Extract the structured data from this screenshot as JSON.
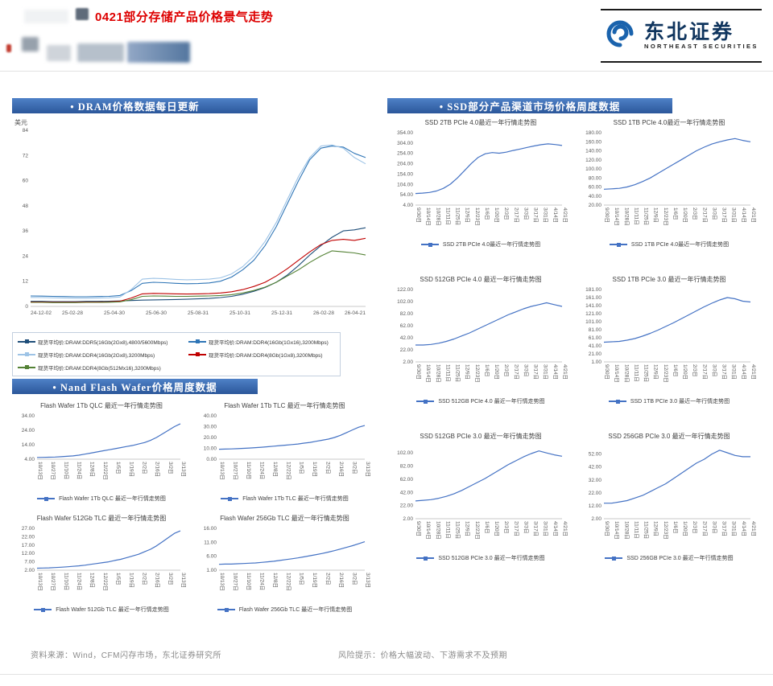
{
  "header": {
    "title": "0421部分存储产品价格景气走势",
    "logo_cn": "东北证券",
    "logo_en": "NORTHEAST SECURITIES"
  },
  "sections": {
    "dram_banner": "•  DRAM价格数据每日更新",
    "nand_banner": "•  Nand Flash Wafer价格周度数据",
    "ssd_banner": "•  SSD部分产品渠道市场价格周度数据"
  },
  "footer": {
    "source": "资料来源：Wind，CFM闪存市场，东北证券研究所",
    "risk": "风险提示：价格大幅波动、下游需求不及预期"
  },
  "accent_colors": {
    "banner_blue": "#2b579a",
    "line_blue": "#4472c4",
    "title_red": "#dd0000"
  },
  "chart_data": [
    {
      "type": "line",
      "title": "",
      "ylabel": "美元",
      "ylim": [
        0,
        84
      ],
      "yticks": [
        "0",
        "12",
        "24",
        "36",
        "48",
        "60",
        "72",
        "84"
      ],
      "margin_left": 24,
      "rotate_xlabels": false,
      "xlabels": [
        "24-12-02",
        "25-02-28",
        "25-04-30",
        "25-06-30",
        "25-08-31",
        "25-10-31",
        "25-12-31",
        "26-02-28",
        "26-04-21"
      ],
      "series": [
        {
          "name": "现货平均价:DRAM:DDR5(16Gb(2Gx8),4800/5600Mbps)",
          "color": "#1f4e79",
          "width": 1.1,
          "values": [
            2.4,
            2.4,
            2.3,
            2.3,
            2.3,
            2.4,
            2.4,
            2.5,
            2.6,
            2.8,
            3.0,
            3.1,
            3.2,
            3.3,
            3.4,
            3.6,
            3.8,
            4.2,
            4.8,
            5.8,
            7.2,
            9.0,
            11.5,
            15,
            19.5,
            24.5,
            29,
            33,
            36,
            36.5,
            37.5
          ]
        },
        {
          "name": "现货平均价:DRAM:DDR4(16Gb(1Gx16),3200Mbps)",
          "color": "#2e75b6",
          "width": 1.1,
          "values": [
            5.0,
            4.9,
            4.8,
            4.7,
            4.6,
            4.6,
            4.7,
            4.8,
            5.2,
            7.5,
            11.0,
            11.5,
            11.3,
            11.0,
            10.8,
            10.9,
            11.2,
            12.0,
            14.0,
            17.5,
            22,
            29,
            38,
            49,
            60,
            70,
            75.5,
            76.5,
            76,
            73,
            71
          ]
        },
        {
          "name": "现货平均价:DRAM:DDR4(16Gb(2Gx8),3200Mbps)",
          "color": "#9dc3e6",
          "width": 1.1,
          "values": [
            4.3,
            4.2,
            4.1,
            4.0,
            3.9,
            3.9,
            4.0,
            4.1,
            4.5,
            8.0,
            13.0,
            13.4,
            13.2,
            12.9,
            12.7,
            12.8,
            13.0,
            13.6,
            15.5,
            19.0,
            24,
            31,
            40,
            51,
            62,
            71,
            76.5,
            77,
            75.5,
            71,
            68
          ]
        },
        {
          "name": "现货平均价:DRAM:DDR4(8Gb(1Gx8),3200Mbps)",
          "color": "#c00000",
          "width": 1.1,
          "values": [
            2.1,
            2.1,
            2.0,
            2.0,
            2.0,
            2.1,
            2.1,
            2.2,
            2.5,
            4.0,
            6.0,
            6.2,
            6.1,
            6.0,
            5.9,
            6.0,
            6.1,
            6.4,
            7.0,
            8.0,
            9.5,
            11.5,
            14.5,
            18,
            22,
            26,
            29.5,
            31.5,
            32,
            31.5,
            32.5
          ]
        },
        {
          "name": "现货平均价:DRAM:DDR4(8Gb(512Mx16),3200Mbps)",
          "color": "#548235",
          "width": 1.1,
          "values": [
            1.9,
            1.9,
            1.8,
            1.8,
            1.8,
            1.9,
            1.9,
            2.0,
            2.2,
            3.2,
            4.8,
            5.0,
            4.9,
            4.8,
            4.8,
            4.9,
            5.0,
            5.2,
            5.6,
            6.4,
            7.6,
            9.2,
            11.5,
            14.5,
            17.5,
            21,
            24,
            26.5,
            26,
            25.5,
            24.5
          ]
        }
      ]
    },
    {
      "type": "line",
      "title": "Flash Wafer 1Tb QLC 最近一年行情走势图",
      "legend": "Flash Wafer 1Tb QLC 最近一年行情走势图",
      "ylim": [
        4,
        34
      ],
      "yticks": [
        "4.00",
        "14.00",
        "24.00",
        "34.00"
      ],
      "margin_left": 26,
      "rotate_xlabels": true,
      "xlabels": [
        "10/13日",
        "10/27日",
        "11/10日",
        "11/24日",
        "12/8日",
        "12/22日",
        "1/5日",
        "1/19日",
        "2/2日",
        "2/16日",
        "3/2日",
        "3/13日"
      ],
      "series": [
        {
          "name": "Flash Wafer 1Tb QLC",
          "color": "#4472c4",
          "values": [
            5.2,
            5.3,
            5.4,
            5.5,
            5.7,
            6.0,
            6.3,
            6.8,
            7.5,
            8.2,
            9.0,
            9.8,
            10.5,
            11.2,
            12.0,
            12.8,
            13.5,
            14.5,
            15.5,
            17,
            19,
            21.5,
            24,
            26.5,
            28.5
          ]
        }
      ]
    },
    {
      "type": "line",
      "title": "Flash Wafer 1Tb TLC 最近一年行情走势图",
      "legend": "Flash Wafer 1Tb TLC 最近一年行情走势图",
      "ylim": [
        0,
        40
      ],
      "yticks": [
        "0.00",
        "10.00",
        "20.00",
        "30.00",
        "40.00"
      ],
      "margin_left": 26,
      "rotate_xlabels": true,
      "xlabels": [
        "10/13日",
        "10/27日",
        "11/10日",
        "11/24日",
        "12/8日",
        "12/22日",
        "1/5日",
        "1/19日",
        "2/2日",
        "2/16日",
        "3/2日",
        "3/13日"
      ],
      "series": [
        {
          "name": "Flash Wafer 1Tb TLC",
          "color": "#4472c4",
          "values": [
            9.2,
            9.3,
            9.5,
            9.7,
            10,
            10.3,
            10.7,
            11,
            11.5,
            12,
            12.5,
            13,
            13.5,
            14,
            14.8,
            15.5,
            16.5,
            17.5,
            18.5,
            20,
            22,
            24.5,
            27,
            29.5,
            31
          ]
        }
      ]
    },
    {
      "type": "line",
      "title": "Flash Wafer 512Gb TLC 最近一年行情走势图",
      "legend": "Flash Wafer 512Gb TLC 最近一年行情走势图",
      "ylim": [
        2,
        27
      ],
      "yticks": [
        "2.00",
        "7.00",
        "12.00",
        "17.00",
        "22.00",
        "27.00"
      ],
      "margin_left": 26,
      "rotate_xlabels": true,
      "xlabels": [
        "10/13日",
        "10/27日",
        "11/10日",
        "11/24日",
        "12/8日",
        "12/22日",
        "1/5日",
        "1/19日",
        "2/2日",
        "2/16日",
        "3/2日",
        "3/13日"
      ],
      "series": [
        {
          "name": "Flash Wafer 512Gb TLC",
          "color": "#4472c4",
          "values": [
            3.2,
            3.3,
            3.4,
            3.6,
            3.8,
            4.0,
            4.3,
            4.6,
            5,
            5.5,
            6,
            6.5,
            7,
            7.8,
            8.5,
            9.5,
            10.5,
            11.5,
            13,
            14.5,
            16.5,
            19,
            21.5,
            24,
            25.5
          ]
        }
      ]
    },
    {
      "type": "line",
      "title": "Flash Wafer 256Gb TLC 最近一年行情走势图",
      "legend": "Flash Wafer 256Gb TLC 最近一年行情走势图",
      "ylim": [
        1,
        16
      ],
      "yticks": [
        "1.00",
        "6.00",
        "11.00",
        "16.00"
      ],
      "margin_left": 26,
      "rotate_xlabels": true,
      "xlabels": [
        "10/13日",
        "10/27日",
        "11/10日",
        "11/24日",
        "12/8日",
        "12/22日",
        "1/5日",
        "1/19日",
        "2/2日",
        "2/16日",
        "3/2日",
        "3/13日"
      ],
      "series": [
        {
          "name": "Flash Wafer 256Gb TLC",
          "color": "#4472c4",
          "values": [
            3.1,
            3.2,
            3.2,
            3.3,
            3.4,
            3.5,
            3.6,
            3.8,
            4.0,
            4.2,
            4.5,
            4.8,
            5.1,
            5.4,
            5.8,
            6.2,
            6.6,
            7.0,
            7.5,
            8.0,
            8.6,
            9.2,
            9.8,
            10.5,
            11.2
          ]
        }
      ]
    },
    {
      "type": "line",
      "title": "SSD 2TB PCIe 4.0最近一年行情走势图",
      "legend": "SSD 2TB PCIe 4.0最近一年行情走势图",
      "ylim": [
        4,
        354
      ],
      "yticks": [
        "4.00",
        "54.00",
        "104.00",
        "154.00",
        "204.00",
        "254.00",
        "304.00",
        "354.00"
      ],
      "margin_left": 28,
      "rotate_xlabels": true,
      "xlabels": [
        "9/30日",
        "10/14日",
        "10/28日",
        "11/11日",
        "11/25日",
        "12/9日",
        "12/23日",
        "1/6日",
        "1/20日",
        "2/3日",
        "2/17日",
        "3/3日",
        "3/17日",
        "3/31日",
        "4/14日",
        "4/21日"
      ],
      "series": [
        {
          "name": "SSD 2TB PCIe 4.0",
          "color": "#4472c4",
          "values": [
            60,
            62,
            65,
            72,
            85,
            105,
            135,
            170,
            205,
            235,
            252,
            258,
            255,
            260,
            268,
            275,
            283,
            290,
            296,
            300,
            297,
            292
          ]
        }
      ]
    },
    {
      "type": "line",
      "title": "SSD 1TB PCIe 4.0最近一年行情走势图",
      "legend": "SSD 1TB PCIe 4.0最近一年行情走势图",
      "ylim": [
        20,
        180
      ],
      "yticks": [
        "20.00",
        "40.00",
        "60.00",
        "80.00",
        "100.00",
        "120.00",
        "140.00",
        "160.00",
        "180.00"
      ],
      "margin_left": 28,
      "rotate_xlabels": true,
      "xlabels": [
        "9/30日",
        "10/14日",
        "10/28日",
        "11/11日",
        "11/25日",
        "12/9日",
        "12/23日",
        "1/6日",
        "1/20日",
        "2/3日",
        "2/17日",
        "3/3日",
        "3/17日",
        "3/31日",
        "4/14日",
        "4/21日"
      ],
      "series": [
        {
          "name": "SSD 1TB PCIe 4.0",
          "color": "#4472c4",
          "values": [
            55,
            56,
            57,
            60,
            65,
            72,
            80,
            90,
            100,
            110,
            120,
            130,
            140,
            148,
            155,
            160,
            164,
            167,
            163,
            160
          ]
        }
      ]
    },
    {
      "type": "line",
      "title": "SSD 512GB PCIe 4.0 最近一年行情走势图",
      "legend": "SSD 512GB PCIe 4.0 最近一年行情走势图",
      "ylim": [
        2,
        122
      ],
      "yticks": [
        "2.00",
        "22.00",
        "42.00",
        "62.00",
        "82.00",
        "102.00",
        "122.00"
      ],
      "margin_left": 28,
      "rotate_xlabels": true,
      "xlabels": [
        "9/30日",
        "10/14日",
        "10/28日",
        "11/11日",
        "11/25日",
        "12/9日",
        "12/23日",
        "1/6日",
        "1/20日",
        "2/3日",
        "2/17日",
        "3/3日",
        "3/17日",
        "3/31日",
        "4/14日",
        "4/21日"
      ],
      "series": [
        {
          "name": "SSD 512GB PCIe 4.0",
          "color": "#4472c4",
          "values": [
            30,
            30,
            31,
            33,
            36,
            40,
            45,
            50,
            56,
            62,
            68,
            74,
            80,
            85,
            90,
            94,
            97,
            100,
            97,
            94
          ]
        }
      ]
    },
    {
      "type": "line",
      "title": "SSD 1TB PCIe 3.0 最近一年行情走势图",
      "legend": "SSD 1TB PCIe 3.0 最近一年行情走势图",
      "ylim": [
        1,
        181
      ],
      "yticks": [
        "1.00",
        "21.00",
        "41.00",
        "61.00",
        "81.00",
        "101.00",
        "121.00",
        "141.00",
        "161.00",
        "181.00"
      ],
      "margin_left": 28,
      "rotate_xlabels": true,
      "xlabels": [
        "9/30日",
        "10/14日",
        "10/28日",
        "11/11日",
        "11/25日",
        "12/9日",
        "12/23日",
        "1/6日",
        "1/20日",
        "2/3日",
        "2/17日",
        "3/3日",
        "3/17日",
        "3/31日",
        "4/14日",
        "4/21日"
      ],
      "series": [
        {
          "name": "SSD 1TB PCIe 3.0",
          "color": "#4472c4",
          "values": [
            50,
            51,
            52,
            55,
            59,
            65,
            72,
            80,
            89,
            98,
            108,
            118,
            128,
            138,
            147,
            155,
            161,
            158,
            152,
            150
          ]
        }
      ]
    },
    {
      "type": "line",
      "title": "SSD 512GB PCIe 3.0 最近一年行情走势图",
      "legend": "SSD 512GB PCIe 3.0 最近一年行情走势图",
      "ylim": [
        2,
        112
      ],
      "yticks": [
        "2.00",
        "22.00",
        "42.00",
        "62.00",
        "82.00",
        "102.00"
      ],
      "margin_left": 28,
      "rotate_xlabels": true,
      "xlabels": [
        "9/30日",
        "10/14日",
        "10/28日",
        "11/11日",
        "11/25日",
        "12/9日",
        "12/23日",
        "1/6日",
        "1/20日",
        "2/3日",
        "2/17日",
        "3/3日",
        "3/17日",
        "3/31日",
        "4/14日",
        "4/21日"
      ],
      "series": [
        {
          "name": "SSD 512GB PCIe 3.0",
          "color": "#4472c4",
          "values": [
            29,
            30,
            31,
            33,
            36,
            40,
            45,
            51,
            57,
            63,
            70,
            77,
            84,
            90,
            96,
            101,
            105,
            102,
            99,
            97
          ]
        }
      ]
    },
    {
      "type": "line",
      "title": "SSD 256GB PCIe 3.0 最近一年行情走势图",
      "legend": "SSD 256GB PCIe 3.0 最近一年行情走势图",
      "ylim": [
        2,
        58
      ],
      "yticks": [
        "2.00",
        "12.00",
        "22.00",
        "32.00",
        "42.00",
        "52.00"
      ],
      "margin_left": 28,
      "rotate_xlabels": true,
      "xlabels": [
        "9/30日",
        "10/14日",
        "10/28日",
        "11/11日",
        "11/25日",
        "12/9日",
        "12/23日",
        "1/6日",
        "1/20日",
        "2/3日",
        "2/17日",
        "3/3日",
        "3/17日",
        "3/31日",
        "4/14日",
        "4/21日"
      ],
      "series": [
        {
          "name": "SSD 256GB PCIe 3.0",
          "color": "#4472c4",
          "values": [
            14,
            14,
            15,
            16,
            18,
            20,
            23,
            26,
            29,
            33,
            37,
            41,
            45,
            48,
            52,
            55,
            53,
            51,
            50,
            50
          ]
        }
      ]
    }
  ]
}
